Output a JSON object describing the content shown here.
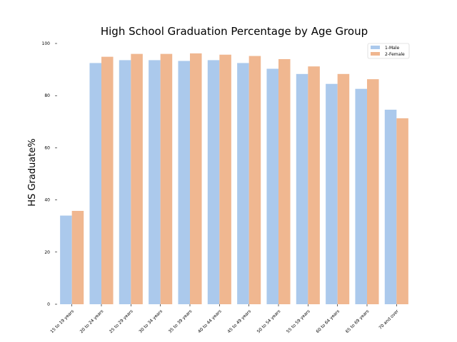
{
  "chart_data": {
    "type": "bar",
    "title": "High School Graduation Percentage by Age Group",
    "xlabel": "",
    "ylabel": "HS Graduate%",
    "ylim": [
      0,
      100
    ],
    "yticks": [
      "0",
      "20",
      "40",
      "60",
      "80",
      "100"
    ],
    "grid": false,
    "legend_position": "top-right",
    "categories": [
      "15 to 19 years",
      "20 to 24 years",
      "25 to 29 years",
      "30 to 34 years",
      "35 to 39 years",
      "40 to 44 years",
      "45 to 49 years",
      "50 to 54 years",
      "55 to 59 years",
      "60 to 64 years",
      "65 to 69 years",
      "70 and over"
    ],
    "series": [
      {
        "name": "1-Male",
        "color": "#abc9ec",
        "values": [
          34.0,
          92.5,
          93.6,
          93.6,
          93.3,
          93.6,
          92.5,
          90.3,
          88.3,
          84.5,
          82.6,
          74.6
        ]
      },
      {
        "name": "2-Female",
        "color": "#f0b790",
        "values": [
          35.8,
          94.9,
          96.0,
          96.0,
          96.2,
          95.7,
          95.2,
          94.0,
          91.2,
          88.3,
          86.3,
          71.3
        ]
      }
    ]
  }
}
